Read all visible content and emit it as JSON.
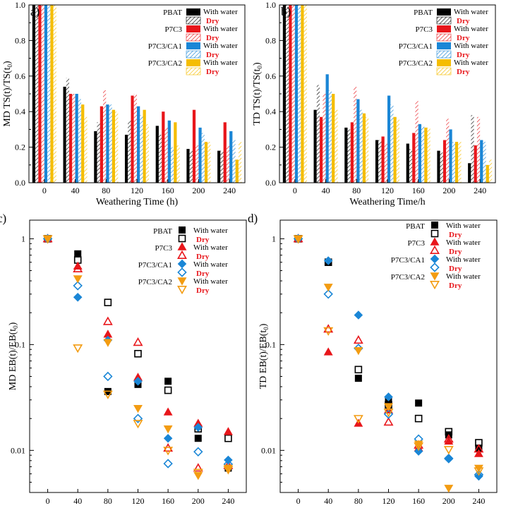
{
  "colors": {
    "PBAT": "#000000",
    "P7C3": "#e8161b",
    "P7C3/CA1": "#1a86d6",
    "P7C3/CA2": "#f5bd00",
    "dry_label": "#e8161b",
    "P7C3/CA2_open_marker": "#f39c12"
  },
  "legend": {
    "series": [
      "PBAT",
      "P7C3",
      "P7C3/CA1",
      "P7C3/CA2"
    ],
    "with_water": "With water",
    "dry": "Dry"
  },
  "chart_data": [
    {
      "panel_label": "a)",
      "type": "bar",
      "xlabel": "Weathering Time (h)",
      "ylabel": "MD TS(t)/TS(t",
      "ylabel_sub": "0",
      "ylabel_end": ")",
      "categories": [
        "0",
        "40",
        "80",
        "120",
        "160",
        "200",
        "240"
      ],
      "ylim": [
        0,
        1.0
      ],
      "yticks": [
        "0.0",
        "0.2",
        "0.4",
        "0.6",
        "0.8",
        "1.0"
      ],
      "legend_placement": "top-right",
      "series": [
        {
          "name": "PBAT",
          "condition": "With water",
          "fill": "solid",
          "values": [
            1.0,
            0.54,
            0.29,
            0.27,
            0.32,
            0.19,
            0.18
          ]
        },
        {
          "name": "PBAT",
          "condition": "Dry",
          "fill": "hatched",
          "values": [
            1.0,
            0.59,
            0.34,
            0.35,
            0.27,
            0.18,
            0.18
          ]
        },
        {
          "name": "P7C3",
          "condition": "With water",
          "fill": "solid",
          "values": [
            1.0,
            0.5,
            0.43,
            0.49,
            0.4,
            0.41,
            0.34
          ]
        },
        {
          "name": "P7C3",
          "condition": "Dry",
          "fill": "hatched",
          "values": [
            1.0,
            0.5,
            0.52,
            0.5,
            0.31,
            0.21,
            0.21
          ]
        },
        {
          "name": "P7C3/CA1",
          "condition": "With water",
          "fill": "solid",
          "values": [
            1.0,
            0.5,
            0.44,
            0.43,
            0.35,
            0.31,
            0.29
          ]
        },
        {
          "name": "P7C3/CA1",
          "condition": "Dry",
          "fill": "hatched",
          "values": [
            1.0,
            0.47,
            0.44,
            0.38,
            0.2,
            0.28,
            0.24
          ]
        },
        {
          "name": "P7C3/CA2",
          "condition": "With water",
          "fill": "solid",
          "values": [
            1.0,
            0.44,
            0.41,
            0.41,
            0.34,
            0.23,
            0.13
          ]
        },
        {
          "name": "P7C3/CA2",
          "condition": "Dry",
          "fill": "hatched",
          "values": [
            1.0,
            0.37,
            0.4,
            0.33,
            0.21,
            0.23,
            0.23
          ]
        }
      ]
    },
    {
      "panel_label": "b)",
      "type": "bar",
      "xlabel": "Weathering Time/h",
      "ylabel": "TD TS(t)/TS(t",
      "ylabel_sub": "0",
      "ylabel_end": ")",
      "categories": [
        "0",
        "40",
        "80",
        "120",
        "160",
        "200",
        "240"
      ],
      "ylim": [
        0,
        1.0
      ],
      "yticks": [
        "0.0",
        "0.2",
        "0.4",
        "0.6",
        "0.8",
        "1.0"
      ],
      "legend_placement": "top-right",
      "series": [
        {
          "name": "PBAT",
          "condition": "With water",
          "fill": "solid",
          "values": [
            1.0,
            0.41,
            0.31,
            0.24,
            0.22,
            0.18,
            0.11
          ]
        },
        {
          "name": "PBAT",
          "condition": "Dry",
          "fill": "hatched",
          "values": [
            1.0,
            0.55,
            0.3,
            0.24,
            0.19,
            0.17,
            0.38
          ]
        },
        {
          "name": "P7C3",
          "condition": "With water",
          "fill": "solid",
          "values": [
            1.0,
            0.37,
            0.34,
            0.26,
            0.28,
            0.24,
            0.21
          ]
        },
        {
          "name": "P7C3",
          "condition": "Dry",
          "fill": "hatched",
          "values": [
            1.0,
            0.5,
            0.54,
            0.22,
            0.46,
            0.36,
            0.37
          ]
        },
        {
          "name": "P7C3/CA1",
          "condition": "With water",
          "fill": "solid",
          "values": [
            1.0,
            0.61,
            0.47,
            0.49,
            0.33,
            0.3,
            0.24
          ]
        },
        {
          "name": "P7C3/CA1",
          "condition": "Dry",
          "fill": "hatched",
          "values": [
            1.0,
            0.52,
            0.41,
            0.44,
            0.32,
            0.23,
            0.23
          ]
        },
        {
          "name": "P7C3/CA2",
          "condition": "With water",
          "fill": "solid",
          "values": [
            1.0,
            0.5,
            0.39,
            0.37,
            0.31,
            0.23,
            0.1
          ]
        },
        {
          "name": "P7C3/CA2",
          "condition": "Dry",
          "fill": "hatched",
          "values": [
            1.0,
            0.41,
            0.37,
            0.36,
            0.31,
            0.23,
            0.13
          ]
        }
      ]
    },
    {
      "panel_label": "c)",
      "type": "scatter",
      "xlabel": "Weathering Time/h",
      "ylabel": "MD EB(t)/EB(t",
      "ylabel_sub": "0",
      "ylabel_end": ")",
      "x": [
        0,
        40,
        80,
        120,
        160,
        200,
        240
      ],
      "xticks": [
        "0",
        "40",
        "80",
        "120",
        "160",
        "200",
        "240"
      ],
      "yscale": "log",
      "ylim": [
        0.004,
        1.5
      ],
      "yticks": [
        {
          "value": 1,
          "label": "1"
        },
        {
          "value": 0.1,
          "label": "0.1"
        },
        {
          "value": 0.01,
          "label": "0.01"
        }
      ],
      "legend_placement": "top-right",
      "series": [
        {
          "name": "PBAT",
          "condition": "With water",
          "marker": "square",
          "filled": true,
          "values": [
            1.0,
            0.72,
            0.036,
            0.042,
            0.045,
            0.013,
            0.0068
          ]
        },
        {
          "name": "PBAT",
          "condition": "Dry",
          "marker": "square",
          "filled": false,
          "values": [
            1.0,
            0.63,
            0.25,
            0.082,
            0.037,
            0.016,
            0.013
          ]
        },
        {
          "name": "P7C3",
          "condition": "With water",
          "marker": "triangle-up",
          "filled": true,
          "values": [
            1.0,
            0.55,
            0.125,
            0.049,
            0.023,
            0.018,
            0.015
          ]
        },
        {
          "name": "P7C3",
          "condition": "Dry",
          "marker": "triangle-up",
          "filled": false,
          "values": [
            1.0,
            0.52,
            0.165,
            0.105,
            0.0105,
            0.0068,
            0.0072
          ]
        },
        {
          "name": "P7C3/CA1",
          "condition": "With water",
          "marker": "diamond",
          "filled": true,
          "values": [
            1.0,
            0.28,
            0.11,
            0.045,
            0.013,
            0.0165,
            0.0081
          ]
        },
        {
          "name": "P7C3/CA1",
          "condition": "Dry",
          "marker": "diamond",
          "filled": false,
          "values": [
            1.0,
            0.36,
            0.05,
            0.02,
            0.0075,
            0.0097,
            0.0074
          ]
        },
        {
          "name": "P7C3/CA2",
          "condition": "With water",
          "marker": "triangle-down",
          "filled": true,
          "values": [
            1.0,
            0.42,
            0.105,
            0.025,
            0.016,
            0.0058,
            0.0068
          ]
        },
        {
          "name": "P7C3/CA2",
          "condition": "Dry",
          "marker": "triangle-down",
          "filled": false,
          "values": [
            1.0,
            0.093,
            0.034,
            0.018,
            0.01,
            0.0062,
            0.0066
          ]
        }
      ]
    },
    {
      "panel_label": "d)",
      "type": "scatter",
      "xlabel": "Weathering Time/h",
      "ylabel": "TD EB(t)/EB(t",
      "ylabel_sub": "0",
      "ylabel_end": ")",
      "x": [
        0,
        40,
        80,
        120,
        160,
        200,
        240
      ],
      "xticks": [
        "0",
        "40",
        "80",
        "120",
        "160",
        "200",
        "240"
      ],
      "yscale": "log",
      "ylim": [
        0.004,
        1.5
      ],
      "yticks": [
        {
          "value": 1,
          "label": "1"
        },
        {
          "value": 0.1,
          "label": "0.1"
        },
        {
          "value": 0.01,
          "label": "0.01"
        }
      ],
      "legend_placement": "top-right",
      "series": [
        {
          "name": "PBAT",
          "condition": "With water",
          "marker": "square",
          "filled": true,
          "values": [
            1.0,
            0.6,
            0.048,
            0.03,
            0.028,
            0.014,
            0.0105
          ]
        },
        {
          "name": "PBAT",
          "condition": "Dry",
          "marker": "square",
          "filled": false,
          "values": [
            1.0,
            0.6,
            0.058,
            0.027,
            0.02,
            0.015,
            0.0118
          ]
        },
        {
          "name": "P7C3",
          "condition": "With water",
          "marker": "triangle-up",
          "filled": true,
          "values": [
            1.0,
            0.085,
            0.018,
            0.024,
            0.0105,
            0.0122,
            0.0093
          ]
        },
        {
          "name": "P7C3",
          "condition": "Dry",
          "marker": "triangle-up",
          "filled": false,
          "values": [
            1.0,
            0.14,
            0.11,
            0.0185,
            0.0112,
            0.0128,
            0.0103
          ]
        },
        {
          "name": "P7C3/CA1",
          "condition": "With water",
          "marker": "diamond",
          "filled": true,
          "values": [
            1.0,
            0.62,
            0.19,
            0.032,
            0.0098,
            0.0083,
            0.0057
          ]
        },
        {
          "name": "P7C3/CA1",
          "condition": "Dry",
          "marker": "diamond",
          "filled": false,
          "values": [
            1.0,
            0.3,
            0.092,
            0.022,
            0.0128,
            0.0084,
            0.0059
          ]
        },
        {
          "name": "P7C3/CA2",
          "condition": "With water",
          "marker": "triangle-down",
          "filled": true,
          "values": [
            1.0,
            0.35,
            0.088,
            0.026,
            0.0115,
            0.0044,
            0.0068
          ]
        },
        {
          "name": "P7C3/CA2",
          "condition": "Dry",
          "marker": "triangle-down",
          "filled": false,
          "values": [
            1.0,
            0.135,
            0.02,
            0.023,
            0.011,
            0.0102,
            0.0064
          ]
        }
      ]
    }
  ]
}
